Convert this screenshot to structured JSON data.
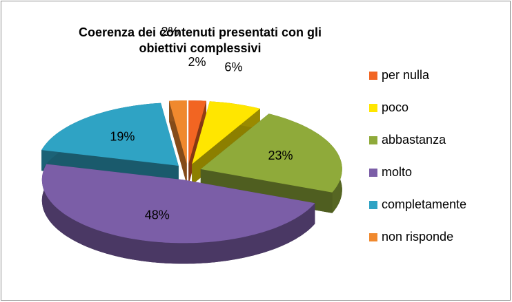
{
  "chart_data": {
    "type": "pie",
    "title": "Coerenza dei contenuti presentati con gli obiettivi complessivi",
    "categories": [
      "per nulla",
      "poco",
      "abbastanza",
      "molto",
      "completamente",
      "non risponde"
    ],
    "values": [
      2,
      6,
      23,
      48,
      19,
      2
    ],
    "value_labels": [
      "2%",
      "6%",
      "23%",
      "48%",
      "19%",
      "2%"
    ],
    "colors": [
      "#f26522",
      "#ffe600",
      "#8faa3a",
      "#7b5ea7",
      "#2fa3c4",
      "#f0892e"
    ],
    "legend": "right"
  }
}
